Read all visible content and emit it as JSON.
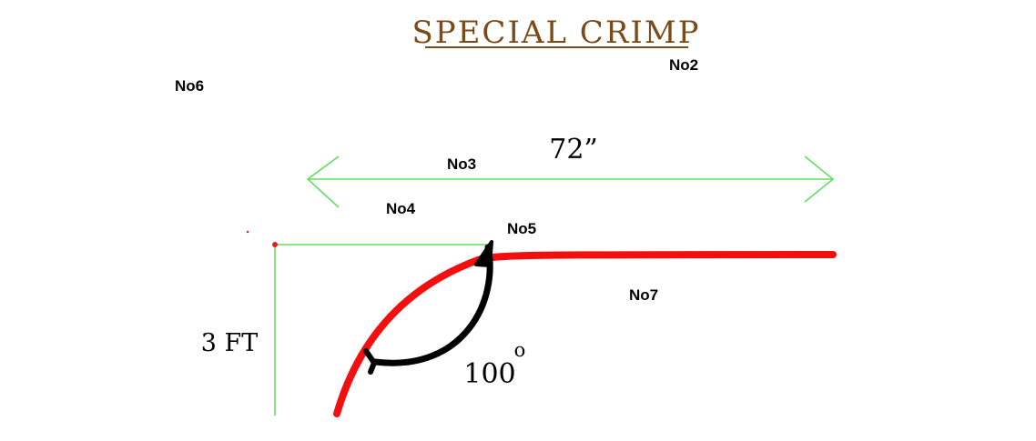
{
  "title": "SPECIAL CRIMP",
  "dimensions": {
    "width_label": "72”",
    "height_label": "3 FT",
    "angle_value": "100",
    "angle_degree_mark": "o"
  },
  "markers": {
    "no2": "No2",
    "no3": "No3",
    "no4": "No4",
    "no5": "No5",
    "no6": "No6",
    "no7": "No7"
  },
  "colors": {
    "title": "#7a4a17",
    "dimension_lines": "#5fe05f",
    "crimp_curve": "#f20f0f",
    "angle_arrow": "#000000",
    "text": "#000000"
  }
}
